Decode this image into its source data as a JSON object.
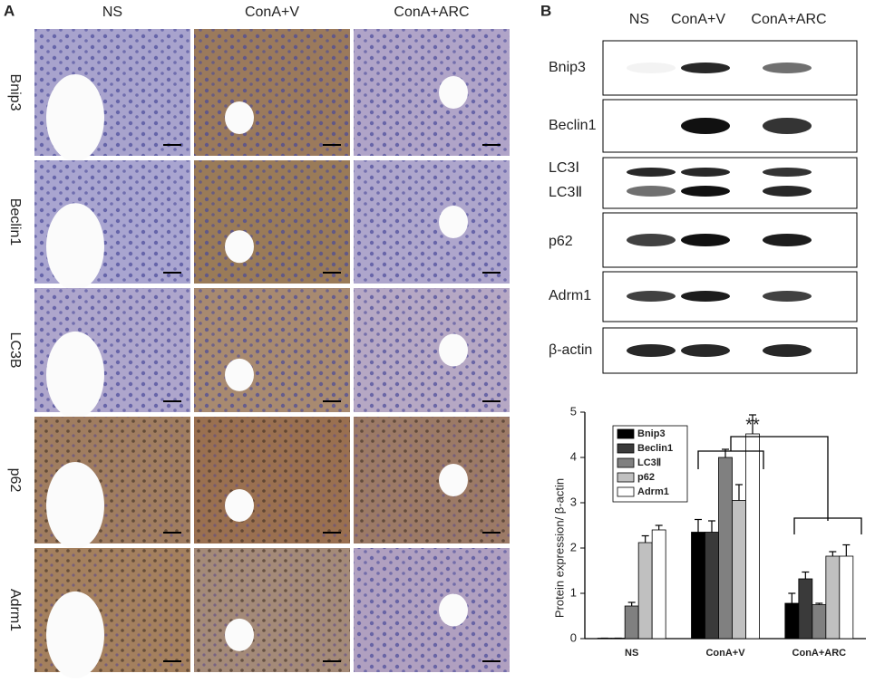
{
  "panel_a": {
    "letter": "A",
    "columns": [
      "NS",
      "ConA+V",
      "ConA+ARC"
    ],
    "rows": [
      "Bnip3",
      "Beclin1",
      "LC3B",
      "p62",
      "Adrm1"
    ]
  },
  "panel_b": {
    "letter": "B",
    "columns": [
      "NS",
      "ConA+V",
      "ConA+ARC"
    ],
    "rows": [
      "Bnip3",
      "Beclin1",
      "LC3Ⅰ",
      "LC3Ⅱ",
      "p62",
      "Adrm1",
      "β-actin"
    ]
  },
  "chart_data": {
    "type": "bar",
    "y_label": "Protein expression/ β-actin",
    "annotation": "**",
    "categories": [
      "NS",
      "ConA+V",
      "ConA+ARC"
    ],
    "series": [
      {
        "name": "Bnip3",
        "color": "#000000",
        "values": [
          0.01,
          2.35,
          0.78
        ],
        "errors": [
          0,
          0.28,
          0.22
        ]
      },
      {
        "name": "Beclin1",
        "color": "#3a3a3a",
        "values": [
          0.01,
          2.35,
          1.32
        ],
        "errors": [
          0,
          0.25,
          0.15
        ]
      },
      {
        "name": "LC3Ⅱ",
        "color": "#808080",
        "values": [
          0.72,
          4.0,
          0.75
        ],
        "errors": [
          0.08,
          0.18,
          0.03
        ]
      },
      {
        "name": "p62",
        "color": "#c0c0c0",
        "values": [
          2.12,
          3.05,
          1.82
        ],
        "errors": [
          0.15,
          0.35,
          0.1
        ]
      },
      {
        "name": "Adrm1",
        "color": "#ffffff",
        "values": [
          2.4,
          4.52,
          1.82
        ],
        "errors": [
          0.1,
          0.42,
          0.25
        ]
      }
    ],
    "ylim": [
      0,
      5
    ],
    "yticks": [
      0,
      1,
      2,
      3,
      4,
      5
    ]
  }
}
